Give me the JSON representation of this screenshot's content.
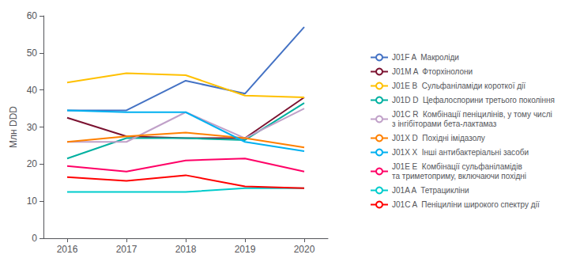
{
  "chart_data": {
    "type": "line",
    "x": [
      2016,
      2017,
      2018,
      2019,
      2020
    ],
    "series": [
      {
        "name": "J01F A  Макроліди",
        "color": "#4472C4",
        "values": [
          34.5,
          34.5,
          42.5,
          39.0,
          57.0
        ]
      },
      {
        "name": "J01M A  Фторхінолони",
        "color": "#7B1230",
        "values": [
          32.5,
          27.5,
          27.0,
          27.0,
          38.0
        ]
      },
      {
        "name": "J01E B  Сульфаніламіди короткої дії",
        "color": "#FFC000",
        "values": [
          42.0,
          44.5,
          44.0,
          38.5,
          38.0
        ]
      },
      {
        "name": "J01D D  Цефалоспорини третього покоління",
        "color": "#00B0A0",
        "values": [
          21.5,
          27.0,
          27.0,
          26.5,
          36.5
        ]
      },
      {
        "name": "J01C R  Комбінації пеніцилінів, у тому числі\nз інгібіторами бета-лактамаз",
        "color": "#C0A0C8",
        "values": [
          26.0,
          26.0,
          34.0,
          27.0,
          35.0
        ]
      },
      {
        "name": "J01X D  Похідні імідазолу",
        "color": "#FF8000",
        "values": [
          26.0,
          27.5,
          28.5,
          27.0,
          24.5
        ]
      },
      {
        "name": "J01X X  Інші антибактеріальні засоби",
        "color": "#00B0F0",
        "values": [
          34.5,
          34.0,
          34.0,
          26.0,
          23.5
        ]
      },
      {
        "name": "J01E E  Комбінації сульфаніламідів\nта триметоприму, включаючи похідні",
        "color": "#FF0066",
        "values": [
          19.5,
          18.0,
          21.0,
          21.5,
          18.0
        ]
      },
      {
        "name": "J01A A  Тетрацикліни",
        "color": "#00CCCC",
        "values": [
          12.5,
          12.5,
          12.5,
          13.5,
          13.5
        ]
      },
      {
        "name": "J01C A  Пеніциліни широкого спектру дії",
        "color": "#FF0000",
        "values": [
          16.5,
          15.5,
          17.0,
          14.0,
          13.5
        ]
      }
    ],
    "ylabel": "Млн DDD",
    "ylim": [
      0,
      60
    ],
    "yticks": [
      0,
      10,
      20,
      30,
      40,
      50,
      60
    ],
    "xlim": [
      2015.6,
      2020.4
    ],
    "xticks": [
      2016,
      2017,
      2018,
      2019,
      2020
    ],
    "grid": false,
    "legend": "right"
  }
}
